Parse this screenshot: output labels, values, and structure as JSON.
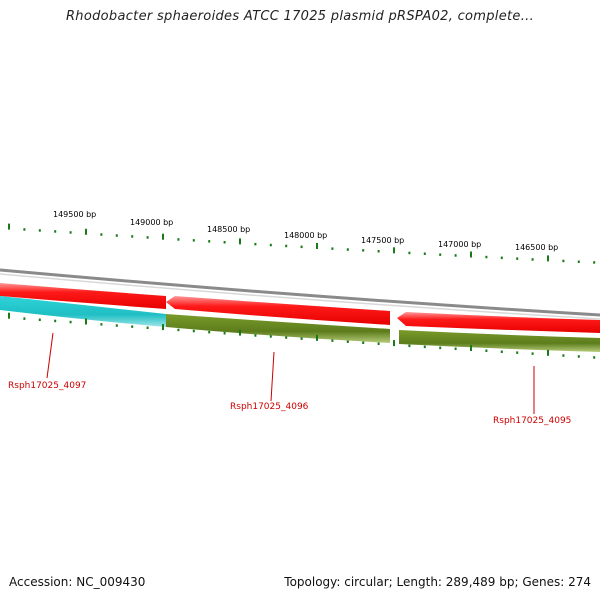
{
  "title": "Rhodobacter sphaeroides ATCC 17025 plasmid pRSPA02, complete...",
  "footer": {
    "accession": "Accession: NC_009430",
    "summary": "Topology: circular; Length: 289,489 bp; Genes: 274"
  },
  "colors": {
    "forward_strand": "#ff0000",
    "reverse_strand_a": "#22c7cc",
    "reverse_strand_b": "#6b8e23",
    "backbone": "#8a8a8a",
    "tick": "#1a7a1a",
    "gene_label": "#cc0000"
  },
  "scale_labels": [
    "149500 bp",
    "149000 bp",
    "148500 bp",
    "148000 bp",
    "147500 bp",
    "147000 bp",
    "146500 bp"
  ],
  "genes": [
    {
      "locus_tag": "Rsph17025_4097"
    },
    {
      "locus_tag": "Rsph17025_4096"
    },
    {
      "locus_tag": "Rsph17025_4095"
    }
  ]
}
